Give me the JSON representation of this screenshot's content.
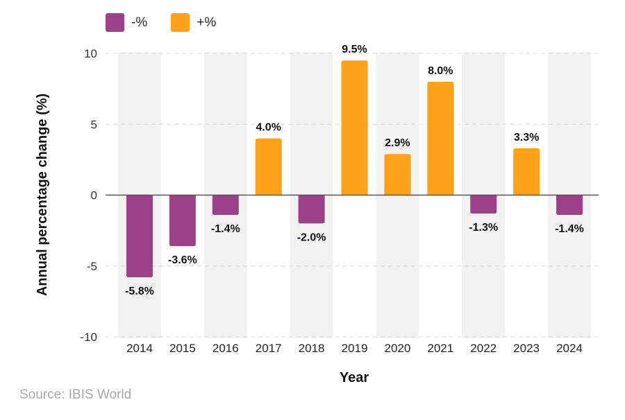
{
  "legend": {
    "items": [
      {
        "label": "-%",
        "color": "#9c4189"
      },
      {
        "label": "+%",
        "color": "#ffa21a"
      }
    ]
  },
  "source": "Source: IBIS World",
  "chart_data": {
    "type": "bar",
    "xlabel": "Year",
    "ylabel": "Annual percentage change (%)",
    "ylim": [
      -10,
      10
    ],
    "yticks": [
      10,
      5,
      0,
      -5,
      -10
    ],
    "grid": true,
    "legend_position": "top-left",
    "categories": [
      "2014",
      "2015",
      "2016",
      "2017",
      "2018",
      "2019",
      "2020",
      "2021",
      "2022",
      "2023",
      "2024"
    ],
    "values": [
      -5.8,
      -3.6,
      -1.4,
      4.0,
      -2.0,
      9.5,
      2.9,
      8.0,
      -1.3,
      3.3,
      -1.4
    ],
    "data_labels": [
      "-5.8%",
      "-3.6%",
      "-1.4%",
      "4.0%",
      "-2.0%",
      "9.5%",
      "2.9%",
      "8.0%",
      "-1.3%",
      "3.3%",
      "-1.4%"
    ],
    "colors": {
      "negative": "#9c4189",
      "positive": "#ffa21a",
      "band": "#f2f2f2",
      "grid": "#d9d9d9",
      "axis": "#555555"
    }
  }
}
